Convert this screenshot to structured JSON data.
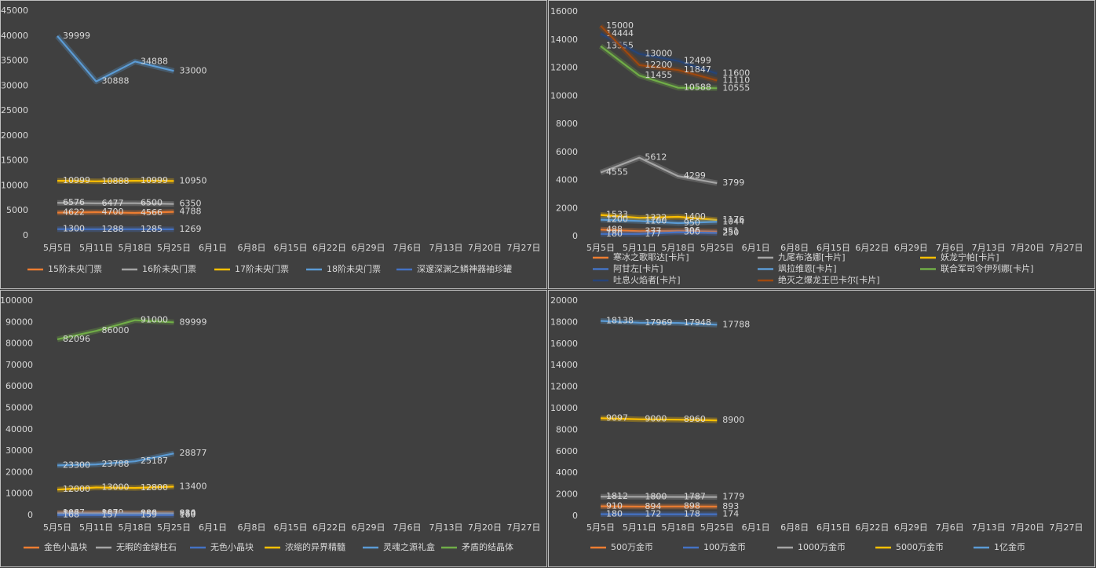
{
  "chart_data": [
    {
      "type": "line",
      "categories": [
        "5月5日",
        "5月11日",
        "5月18日",
        "5月25日",
        "6月1日",
        "6月8日",
        "6月15日",
        "6月22日",
        "6月29日",
        "7月6日",
        "7月13日",
        "7月20日",
        "7月27日"
      ],
      "ylim": [
        0,
        45000
      ],
      "yticks": [
        0,
        5000,
        10000,
        15000,
        20000,
        25000,
        30000,
        35000,
        40000,
        45000
      ],
      "grid": false,
      "series": [
        {
          "name": "15阶未央门票",
          "color": "#ed7d31",
          "values": [
            4622,
            4700,
            4566,
            4788,
            null,
            null,
            null,
            null,
            null,
            null,
            null,
            null,
            null
          ]
        },
        {
          "name": "16阶未央门票",
          "color": "#a5a5a5",
          "values": [
            6576,
            6477,
            6500,
            6350,
            null,
            null,
            null,
            null,
            null,
            null,
            null,
            null,
            null
          ]
        },
        {
          "name": "17阶未央门票",
          "color": "#ffc000",
          "values": [
            10999,
            10888,
            10999,
            10950,
            null,
            null,
            null,
            null,
            null,
            null,
            null,
            null,
            null
          ]
        },
        {
          "name": "18阶未央门票",
          "color": "#5b9bd5",
          "values": [
            39999,
            30888,
            34888,
            33000,
            null,
            null,
            null,
            null,
            null,
            null,
            null,
            null,
            null
          ]
        },
        {
          "name": "深邃深渊之鳞神器袖珍罐",
          "color": "#4472c4",
          "values": [
            1300,
            1288,
            1285,
            1269,
            null,
            null,
            null,
            null,
            null,
            null,
            null,
            null,
            null
          ]
        }
      ]
    },
    {
      "type": "line",
      "categories": [
        "5月5日",
        "5月11日",
        "5月18日",
        "5月25日",
        "6月1日",
        "6月8日",
        "6月15日",
        "6月22日",
        "6月29日",
        "7月6日",
        "7月13日",
        "7月20日",
        "7月27日"
      ],
      "ylim": [
        0,
        16000
      ],
      "yticks": [
        0,
        2000,
        4000,
        6000,
        8000,
        10000,
        12000,
        14000,
        16000
      ],
      "grid": false,
      "series": [
        {
          "name": "寒冰之歌耶达[卡片]",
          "color": "#ed7d31",
          "values": [
            488,
            377,
            396,
            351,
            null,
            null,
            null,
            null,
            null,
            null,
            null,
            null,
            null
          ]
        },
        {
          "name": "九尾布洛娜[卡片]",
          "color": "#a5a5a5",
          "values": [
            4555,
            5612,
            4299,
            3799,
            null,
            null,
            null,
            null,
            null,
            null,
            null,
            null,
            null
          ]
        },
        {
          "name": "妖龙宁帕[卡片]",
          "color": "#ffc000",
          "values": [
            1533,
            1322,
            1400,
            1176,
            null,
            null,
            null,
            null,
            null,
            null,
            null,
            null,
            null
          ]
        },
        {
          "name": "阿甘左[卡片]",
          "color": "#4472c4",
          "values": [
            180,
            177,
            300,
            250,
            null,
            null,
            null,
            null,
            null,
            null,
            null,
            null,
            null
          ]
        },
        {
          "name": "飒拉维恩[卡片]",
          "color": "#5b9bd5",
          "values": [
            1200,
            1100,
            950,
            1044,
            null,
            null,
            null,
            null,
            null,
            null,
            null,
            null,
            null
          ]
        },
        {
          "name": "联合军司令伊列娜[卡片]",
          "color": "#70ad47",
          "values": [
            13555,
            11455,
            10588,
            10555,
            null,
            null,
            null,
            null,
            null,
            null,
            null,
            null,
            null
          ]
        },
        {
          "name": "吐息火焰者[卡片]",
          "color": "#264478",
          "values": [
            14444,
            13000,
            12499,
            11600,
            null,
            null,
            null,
            null,
            null,
            null,
            null,
            null,
            null
          ]
        },
        {
          "name": "绝灭之爆龙王巴卡尔[卡片]",
          "color": "#9e480e",
          "values": [
            15000,
            12200,
            11847,
            11110,
            null,
            null,
            null,
            null,
            null,
            null,
            null,
            null,
            null
          ]
        }
      ]
    },
    {
      "type": "line",
      "categories": [
        "5月5日",
        "5月11日",
        "5月18日",
        "5月25日",
        "6月1日",
        "6月8日",
        "6月15日",
        "6月22日",
        "6月29日",
        "7月6日",
        "7月13日",
        "7月20日",
        "7月27日"
      ],
      "ylim": [
        0,
        100000
      ],
      "yticks": [
        0,
        10000,
        20000,
        30000,
        40000,
        50000,
        60000,
        70000,
        80000,
        90000,
        100000
      ],
      "grid": false,
      "series": [
        {
          "name": "金色小晶块",
          "color": "#ed7d31",
          "values": [
            1067,
            1079,
            986,
            914,
            null,
            null,
            null,
            null,
            null,
            null,
            null,
            null,
            null
          ]
        },
        {
          "name": "无暇的金绿柱石",
          "color": "#a5a5a5",
          "values": [
            887,
            867,
            889,
            880,
            null,
            null,
            null,
            null,
            null,
            null,
            null,
            null,
            null
          ]
        },
        {
          "name": "无色小晶块",
          "color": "#4472c4",
          "values": [
            168,
            157,
            159,
            160,
            null,
            null,
            null,
            null,
            null,
            null,
            null,
            null,
            null
          ]
        },
        {
          "name": "浓缩的异界精髓",
          "color": "#ffc000",
          "values": [
            12000,
            13000,
            12800,
            13400,
            null,
            null,
            null,
            null,
            null,
            null,
            null,
            null,
            null
          ]
        },
        {
          "name": "灵魂之源礼盒",
          "color": "#5b9bd5",
          "values": [
            23300,
            23788,
            25187,
            28877,
            null,
            null,
            null,
            null,
            null,
            null,
            null,
            null,
            null
          ]
        },
        {
          "name": "矛盾的结晶体",
          "color": "#70ad47",
          "values": [
            82096,
            86000,
            91000,
            89999,
            null,
            null,
            null,
            null,
            null,
            null,
            null,
            null,
            null
          ]
        }
      ]
    },
    {
      "type": "line",
      "categories": [
        "5月5日",
        "5月11日",
        "5月18日",
        "5月25日",
        "6月1日",
        "6月8日",
        "6月15日",
        "6月22日",
        "6月29日",
        "7月6日",
        "7月13日",
        "7月20日",
        "7月27日"
      ],
      "ylim": [
        0,
        20000
      ],
      "yticks": [
        0,
        2000,
        4000,
        6000,
        8000,
        10000,
        12000,
        14000,
        16000,
        18000,
        20000
      ],
      "grid": false,
      "series": [
        {
          "name": "500万金币",
          "color": "#ed7d31",
          "values": [
            910,
            894,
            898,
            893,
            null,
            null,
            null,
            null,
            null,
            null,
            null,
            null,
            null
          ]
        },
        {
          "name": "100万金币",
          "color": "#4472c4",
          "values": [
            180,
            172,
            178,
            174,
            null,
            null,
            null,
            null,
            null,
            null,
            null,
            null,
            null
          ]
        },
        {
          "name": "1000万金币",
          "color": "#a5a5a5",
          "values": [
            1812,
            1800,
            1787,
            1779,
            null,
            null,
            null,
            null,
            null,
            null,
            null,
            null,
            null
          ]
        },
        {
          "name": "5000万金币",
          "color": "#ffc000",
          "values": [
            9097,
            9000,
            8960,
            8900,
            null,
            null,
            null,
            null,
            null,
            null,
            null,
            null,
            null
          ]
        },
        {
          "name": "1亿金币",
          "color": "#5b9bd5",
          "values": [
            18138,
            17969,
            17948,
            17788,
            null,
            null,
            null,
            null,
            null,
            null,
            null,
            null,
            null
          ]
        }
      ]
    }
  ]
}
